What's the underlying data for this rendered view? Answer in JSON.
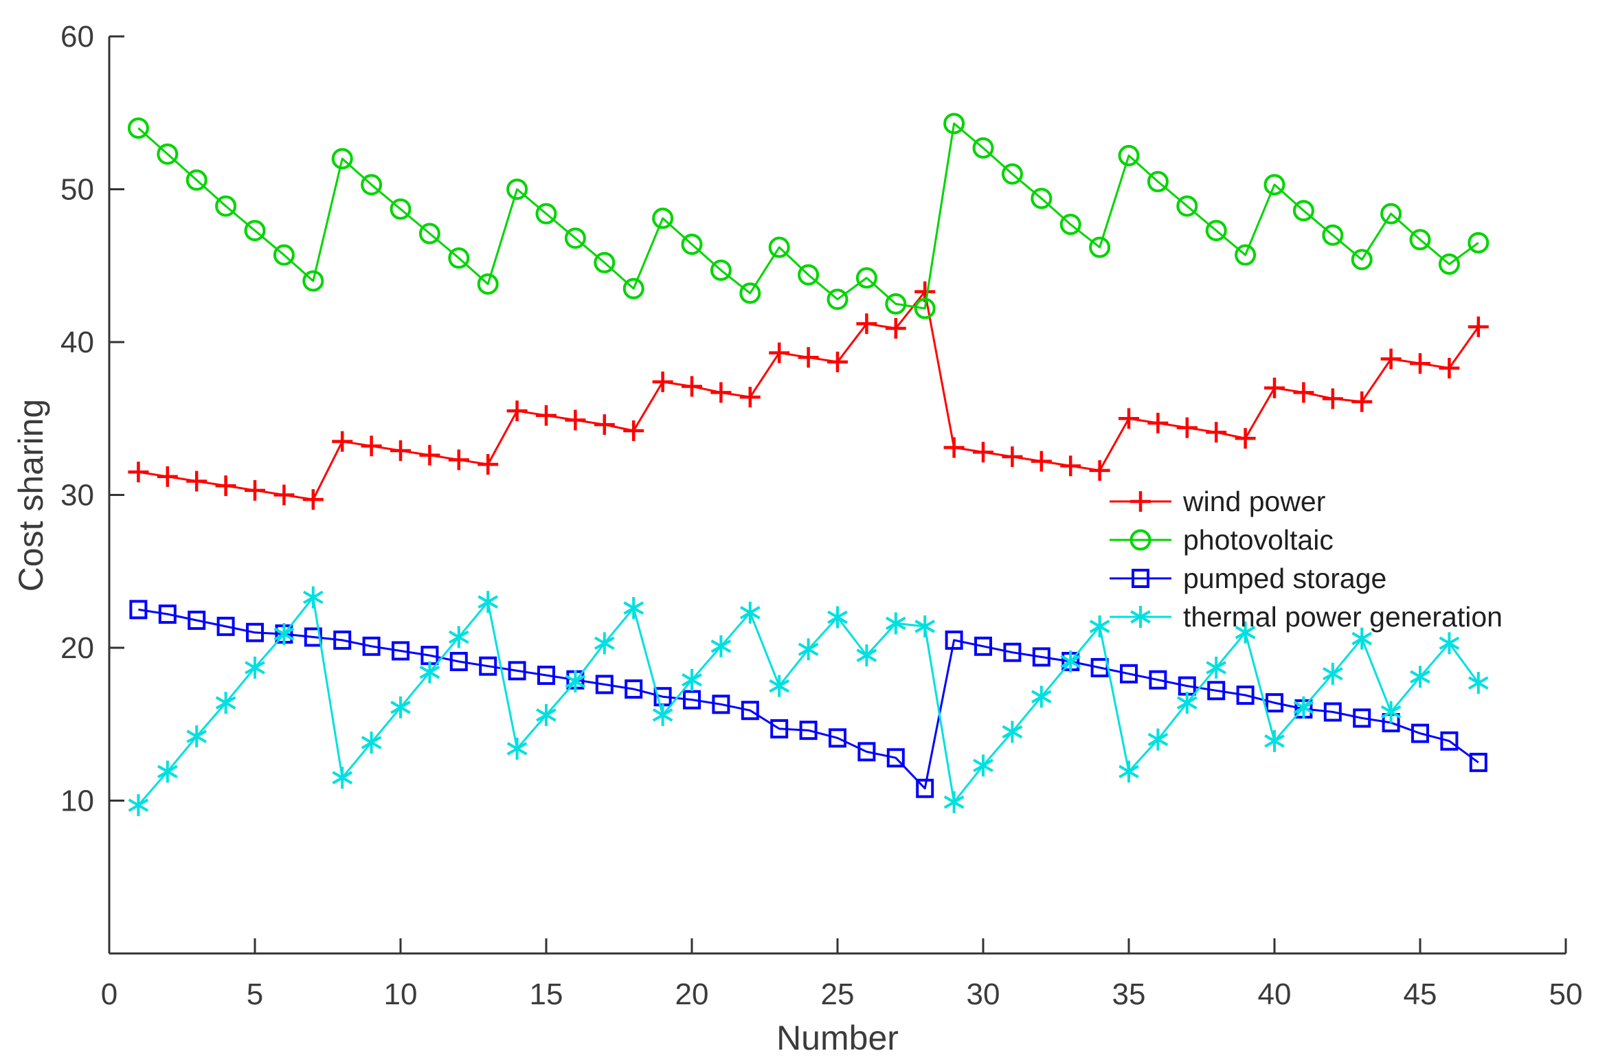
{
  "figure": {
    "background": "#ffffff",
    "axis_color": "#333333",
    "text_color": "#3b3b3b"
  },
  "chart_data": {
    "type": "line",
    "title": "",
    "xlabel": "Number",
    "ylabel": "Cost sharing",
    "xlim": [
      0,
      50
    ],
    "ylim": [
      0,
      60
    ],
    "x_ticks": [
      0,
      5,
      10,
      15,
      20,
      25,
      30,
      35,
      40,
      45,
      50
    ],
    "y_ticks": [
      10,
      20,
      30,
      40,
      50,
      60
    ],
    "grid": false,
    "legend_position": "inside-right-middle",
    "x": [
      1,
      2,
      3,
      4,
      5,
      6,
      7,
      8,
      9,
      10,
      11,
      12,
      13,
      14,
      15,
      16,
      17,
      18,
      19,
      20,
      21,
      22,
      23,
      24,
      25,
      26,
      27,
      28,
      29,
      30,
      31,
      32,
      33,
      34,
      35,
      36,
      37,
      38,
      39,
      40,
      41,
      42,
      43,
      44,
      45,
      46,
      47
    ],
    "series": [
      {
        "name": "wind power",
        "color": "#ff0000",
        "marker": "plus",
        "values": [
          31.5,
          31.2,
          30.9,
          30.6,
          30.3,
          30.0,
          29.7,
          33.5,
          33.2,
          32.9,
          32.6,
          32.3,
          32.0,
          35.5,
          35.2,
          34.9,
          34.6,
          34.2,
          37.4,
          37.1,
          36.7,
          36.4,
          39.3,
          39.0,
          38.7,
          41.2,
          40.9,
          43.3,
          33.1,
          32.8,
          32.5,
          32.2,
          31.9,
          31.6,
          35.0,
          34.7,
          34.4,
          34.1,
          33.7,
          37.0,
          36.7,
          36.3,
          36.1,
          38.9,
          38.6,
          38.3,
          41.0
        ]
      },
      {
        "name": "photovoltaic",
        "color": "#00d500",
        "marker": "circle",
        "values": [
          54.0,
          52.3,
          50.6,
          48.9,
          47.3,
          45.7,
          44.0,
          52.0,
          50.3,
          48.7,
          47.1,
          45.5,
          43.8,
          50.0,
          48.4,
          46.8,
          45.2,
          43.5,
          48.1,
          46.4,
          44.7,
          43.2,
          46.2,
          44.4,
          42.8,
          44.2,
          42.5,
          42.2,
          54.3,
          52.7,
          51.0,
          49.4,
          47.7,
          46.2,
          52.2,
          50.5,
          48.9,
          47.3,
          45.7,
          50.3,
          48.6,
          47.0,
          45.4,
          48.4,
          46.7,
          45.1,
          46.5
        ]
      },
      {
        "name": "pumped storage",
        "color": "#0000ff",
        "marker": "square",
        "values": [
          22.5,
          22.2,
          21.8,
          21.4,
          21.0,
          20.9,
          20.7,
          20.5,
          20.1,
          19.8,
          19.5,
          19.1,
          18.8,
          18.5,
          18.2,
          17.9,
          17.6,
          17.3,
          16.8,
          16.6,
          16.3,
          15.9,
          14.7,
          14.6,
          14.1,
          13.2,
          12.8,
          10.8,
          20.5,
          20.1,
          19.7,
          19.4,
          19.1,
          18.7,
          18.3,
          17.9,
          17.5,
          17.2,
          16.9,
          16.4,
          16.0,
          15.8,
          15.4,
          15.1,
          14.4,
          13.9,
          12.5
        ]
      },
      {
        "name": "thermal power generation",
        "color": "#00e0e0",
        "marker": "asterisk",
        "values": [
          9.7,
          11.9,
          14.2,
          16.4,
          18.7,
          20.9,
          23.3,
          11.5,
          13.8,
          16.1,
          18.4,
          20.7,
          23.0,
          13.4,
          15.6,
          17.8,
          20.3,
          22.6,
          15.6,
          17.9,
          20.1,
          22.3,
          17.5,
          19.9,
          22.0,
          19.5,
          21.6,
          21.4,
          9.9,
          12.3,
          14.5,
          16.8,
          19.1,
          21.4,
          11.9,
          14.0,
          16.4,
          18.7,
          21.0,
          13.9,
          16.1,
          18.3,
          20.6,
          15.8,
          18.1,
          20.3,
          17.7
        ]
      }
    ]
  }
}
